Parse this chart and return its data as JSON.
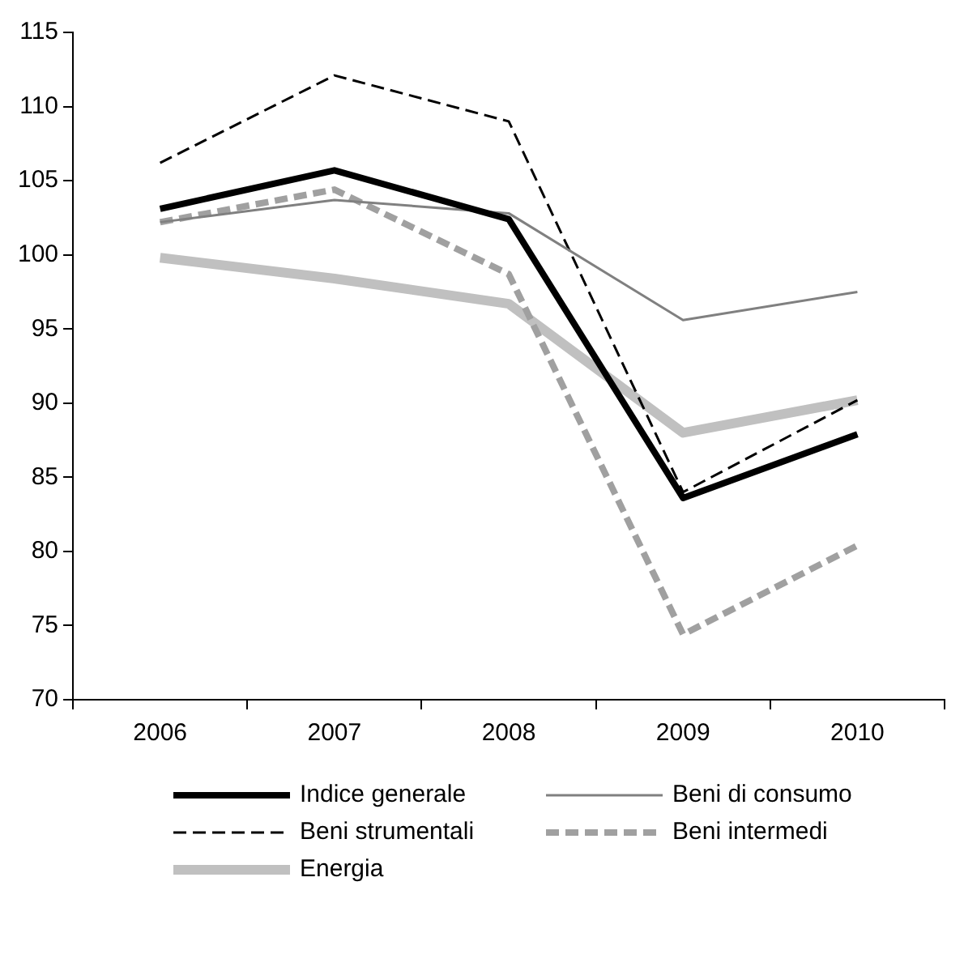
{
  "chart_data": {
    "type": "line",
    "categories": [
      "2006",
      "2007",
      "2008",
      "2009",
      "2010"
    ],
    "series": [
      {
        "name": "Indice generale",
        "color": "#000000",
        "line_style": "solid",
        "values": [
          103.1,
          105.7,
          102.4,
          83.6,
          87.9
        ]
      },
      {
        "name": "Beni di consumo",
        "color": "#808080",
        "line_style": "solid",
        "values": [
          102.2,
          103.7,
          102.8,
          95.6,
          97.5
        ]
      },
      {
        "name": "Beni strumentali",
        "color": "#000000",
        "line_style": "dashed",
        "values": [
          106.2,
          112.1,
          109.0,
          84.0,
          90.2
        ]
      },
      {
        "name": "Beni intermedi",
        "color": "#a0a0a0",
        "line_style": "dashed",
        "values": [
          102.2,
          104.4,
          98.7,
          74.4,
          80.4
        ]
      },
      {
        "name": "Energia",
        "color": "#c0c0c0",
        "line_style": "solid",
        "values": [
          99.8,
          98.4,
          96.7,
          88.0,
          90.2
        ]
      }
    ],
    "ylim": [
      70,
      115
    ],
    "yticks": [
      70,
      75,
      80,
      85,
      90,
      95,
      100,
      105,
      110,
      115
    ],
    "grid": false,
    "legend": "bottom",
    "marker": "none"
  }
}
